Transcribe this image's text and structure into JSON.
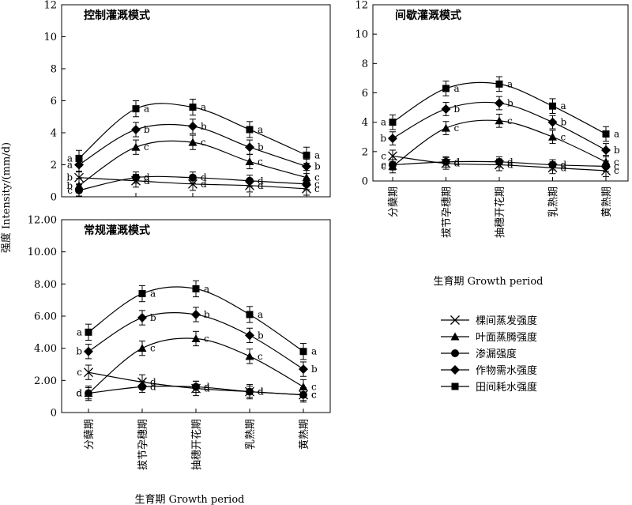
{
  "figure": {
    "y_axis_label": "强度 Intensity/(mm/d)",
    "x_axis_label": "生育期 Growth period"
  },
  "legend": {
    "items": [
      {
        "label": "棵间蒸发强度",
        "marker": "x-mark"
      },
      {
        "label": "叶面蒸腾强度",
        "marker": "triangle"
      },
      {
        "label": "渗漏强度",
        "marker": "circle"
      },
      {
        "label": "作物需水强度",
        "marker": "diamond"
      },
      {
        "label": "田间耗水强度",
        "marker": "square"
      }
    ]
  },
  "chart_data": [
    {
      "type": "line",
      "title": "控制灌溉模式",
      "categories": [
        "分蘖期",
        "拔节孕穗期",
        "抽穗开花期",
        "乳熟期",
        "黄熟期"
      ],
      "ylim": [
        0,
        12
      ],
      "yticks": [
        "0",
        "2",
        "4",
        "6",
        "8",
        "10",
        "12"
      ],
      "show_x_tick_labels": false,
      "grid": false,
      "series": [
        {
          "name": "棵间蒸发强度",
          "values": [
            1.2,
            1.0,
            0.8,
            0.7,
            0.5
          ],
          "error": 0.4,
          "letters": [
            "b",
            "d",
            "d",
            "d",
            "c"
          ]
        },
        {
          "name": "叶面蒸腾强度",
          "values": [
            0.7,
            3.1,
            3.4,
            2.2,
            1.2
          ],
          "error": 0.45,
          "letters": [
            "b",
            "c",
            "c",
            "c",
            "c"
          ]
        },
        {
          "name": "渗漏强度",
          "values": [
            0.4,
            1.2,
            1.2,
            1.0,
            0.8
          ],
          "error": 0.35,
          "letters": [
            "c",
            "d",
            "d",
            "d",
            "c"
          ]
        },
        {
          "name": "作物需水强度",
          "values": [
            2.0,
            4.2,
            4.4,
            3.1,
            1.9
          ],
          "error": 0.45,
          "letters": [
            "a",
            "b",
            "b",
            "b",
            "b"
          ]
        },
        {
          "name": "田间耗水强度",
          "values": [
            2.4,
            5.5,
            5.6,
            4.2,
            2.6
          ],
          "error": 0.5,
          "letters": [
            "a",
            "a",
            "a",
            "a",
            "a"
          ]
        }
      ]
    },
    {
      "type": "line",
      "title": "间歇灌溉模式",
      "categories": [
        "分蘖期",
        "拔节孕穗期",
        "抽穗开花期",
        "乳熟期",
        "黄熟期"
      ],
      "ylim": [
        0,
        12
      ],
      "yticks": [
        "0",
        "2",
        "4",
        "6",
        "8",
        "10",
        "12"
      ],
      "show_x_tick_labels": true,
      "grid": false,
      "series": [
        {
          "name": "棵间蒸发强度",
          "values": [
            1.7,
            1.2,
            1.1,
            0.9,
            0.7
          ],
          "error": 0.4,
          "letters": [
            "c",
            "d",
            "d",
            "d",
            "c"
          ]
        },
        {
          "name": "叶面蒸腾强度",
          "values": [
            1.0,
            3.6,
            4.1,
            3.0,
            1.3
          ],
          "error": 0.45,
          "letters": [
            "c",
            "c",
            "c",
            "c",
            "c"
          ]
        },
        {
          "name": "渗漏强度",
          "values": [
            1.1,
            1.3,
            1.3,
            1.1,
            1.0
          ],
          "error": 0.35,
          "letters": [
            "c",
            "d",
            "d",
            "d",
            "c"
          ]
        },
        {
          "name": "作物需水强度",
          "values": [
            2.9,
            4.9,
            5.3,
            4.0,
            2.1
          ],
          "error": 0.45,
          "letters": [
            "b",
            "b",
            "b",
            "b",
            "b"
          ]
        },
        {
          "name": "田间耗水强度",
          "values": [
            4.0,
            6.3,
            6.6,
            5.1,
            3.2
          ],
          "error": 0.5,
          "letters": [
            "a",
            "a",
            "a",
            "a",
            "a"
          ]
        }
      ]
    },
    {
      "type": "line",
      "title": "常规灌溉模式",
      "categories": [
        "分蘖期",
        "拔节孕穗期",
        "抽穗开花期",
        "乳熟期",
        "黄熟期"
      ],
      "ylim": [
        0,
        12
      ],
      "yticks": [
        "0",
        "2.00",
        "4.00",
        "6.00",
        "8.00",
        "10.00",
        "12.00"
      ],
      "show_x_tick_labels": true,
      "grid": false,
      "series": [
        {
          "name": "棵间蒸发强度",
          "values": [
            2.5,
            1.9,
            1.5,
            1.3,
            1.1
          ],
          "error": 0.45,
          "letters": [
            "c",
            "d",
            "d",
            "d",
            "c"
          ]
        },
        {
          "name": "叶面蒸腾强度",
          "values": [
            1.2,
            4.0,
            4.6,
            3.5,
            1.6
          ],
          "error": 0.45,
          "letters": [
            "d",
            "c",
            "c",
            "c",
            "c"
          ]
        },
        {
          "name": "渗漏强度",
          "values": [
            1.2,
            1.6,
            1.6,
            1.3,
            1.1
          ],
          "error": 0.35,
          "letters": [
            "d",
            "d",
            "d",
            "d",
            "c"
          ]
        },
        {
          "name": "作物需水强度",
          "values": [
            3.8,
            5.9,
            6.1,
            4.8,
            2.7
          ],
          "error": 0.45,
          "letters": [
            "b",
            "b",
            "b",
            "b",
            "b"
          ]
        },
        {
          "name": "田间耗水强度",
          "values": [
            5.0,
            7.4,
            7.7,
            6.1,
            3.8
          ],
          "error": 0.5,
          "letters": [
            "a",
            "a",
            "a",
            "a",
            "a"
          ]
        }
      ]
    }
  ]
}
